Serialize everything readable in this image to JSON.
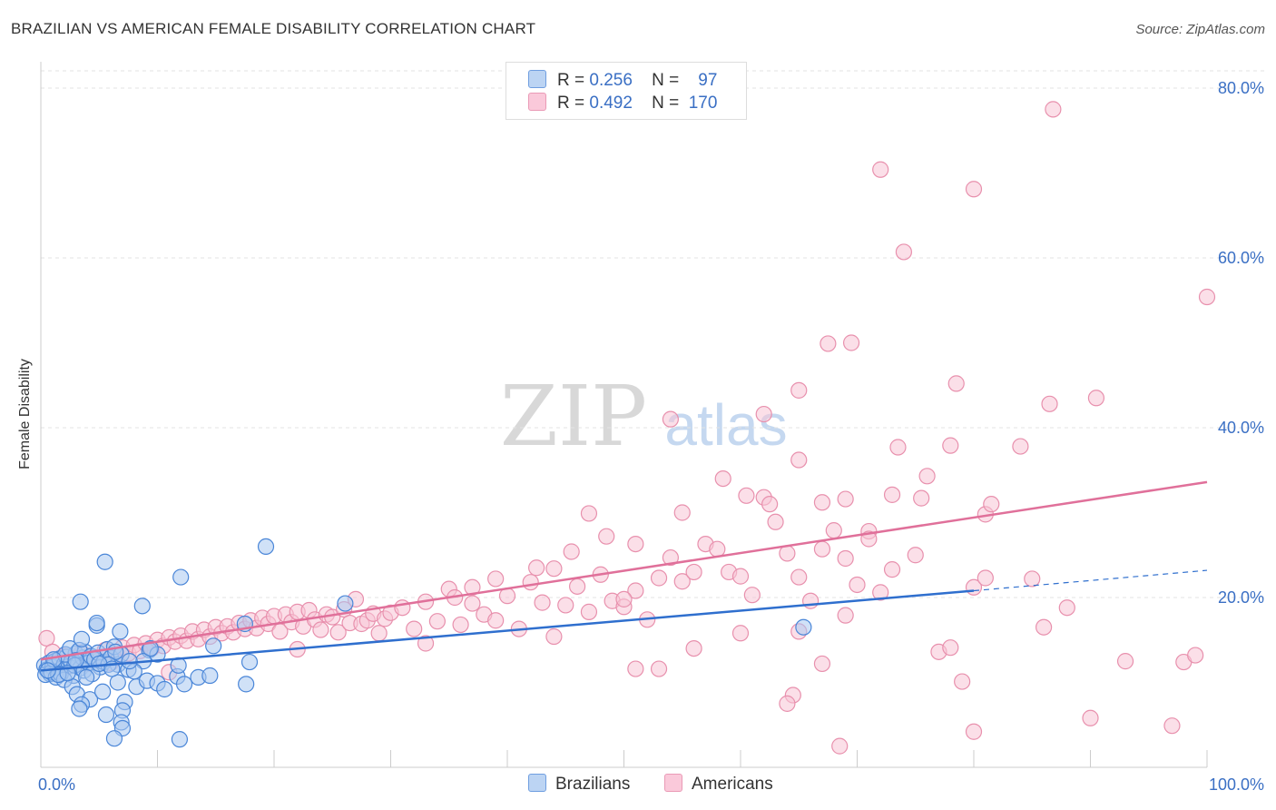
{
  "title": "BRAZILIAN VS AMERICAN FEMALE DISABILITY CORRELATION CHART",
  "source": "Source: ZipAtlas.com",
  "watermark": {
    "zip": "ZIP",
    "atlas": "atlas"
  },
  "legend": {
    "rows": [
      {
        "r_label": "R =",
        "r_value": "0.256",
        "n_label": "N =",
        "n_value": "97"
      },
      {
        "r_label": "R =",
        "r_value": "0.492",
        "n_label": "N =",
        "n_value": "170"
      }
    ]
  },
  "chart_data": {
    "type": "scatter",
    "title": "BRAZILIAN VS AMERICAN FEMALE DISABILITY CORRELATION CHART",
    "xlabel": "",
    "ylabel": "Female Disability",
    "xlim": [
      0,
      100
    ],
    "ylim": [
      0,
      80
    ],
    "x_tick_labels": [
      "0.0%",
      "100.0%"
    ],
    "y_tick_labels": [
      "20.0%",
      "40.0%",
      "60.0%",
      "80.0%"
    ],
    "y_ticks": [
      20,
      40,
      60,
      80
    ],
    "x_ticks": [
      0,
      10,
      20,
      30,
      40,
      50,
      60,
      70,
      80,
      90,
      100
    ],
    "grid": true,
    "legend_position": "top-center",
    "colors": {
      "brazilians_fill": "#aac8f0",
      "brazilians_stroke": "#4a86d8",
      "brazilians_line": "#2f6fce",
      "americans_fill": "#f8c4d6",
      "americans_stroke": "#e890ad",
      "americans_line": "#e0709a",
      "axis_label_blue": "#3a6fc4"
    },
    "series": [
      {
        "name": "Brazilians",
        "r": 0.256,
        "n": 97,
        "trend": {
          "x0": 0,
          "y0": 11.4,
          "x1": 80,
          "y1": 20.8,
          "dash_to_x": 100,
          "dash_to_y": 23.2
        },
        "points": [
          [
            0.3,
            12.0
          ],
          [
            0.5,
            11.5
          ],
          [
            0.7,
            12.3
          ],
          [
            0.8,
            11.0
          ],
          [
            1.0,
            11.8
          ],
          [
            1.2,
            12.5
          ],
          [
            1.4,
            11.3
          ],
          [
            1.6,
            12.8
          ],
          [
            1.8,
            11.6
          ],
          [
            2.0,
            12.1
          ],
          [
            2.2,
            13.0
          ],
          [
            2.4,
            11.9
          ],
          [
            2.6,
            12.4
          ],
          [
            2.8,
            10.8
          ],
          [
            3.0,
            13.4
          ],
          [
            3.2,
            12.2
          ],
          [
            3.4,
            11.7
          ],
          [
            3.6,
            12.9
          ],
          [
            3.8,
            13.6
          ],
          [
            4.0,
            12.6
          ],
          [
            0.4,
            10.9
          ],
          [
            0.9,
            11.2
          ],
          [
            1.3,
            10.6
          ],
          [
            1.7,
            11.0
          ],
          [
            2.1,
            13.3
          ],
          [
            2.5,
            14.0
          ],
          [
            2.9,
            12.0
          ],
          [
            3.3,
            13.8
          ],
          [
            3.7,
            11.4
          ],
          [
            4.1,
            12.3
          ],
          [
            4.3,
            13.1
          ],
          [
            4.6,
            12.7
          ],
          [
            4.9,
            13.5
          ],
          [
            5.1,
            11.8
          ],
          [
            5.4,
            12.4
          ],
          [
            5.7,
            13.9
          ],
          [
            6.0,
            12.9
          ],
          [
            6.3,
            14.2
          ],
          [
            6.6,
            12.1
          ],
          [
            6.9,
            13.3
          ],
          [
            3.4,
            19.5
          ],
          [
            5.5,
            24.2
          ],
          [
            8.7,
            19.0
          ],
          [
            12.0,
            22.4
          ],
          [
            19.3,
            26.0
          ],
          [
            26.1,
            19.3
          ],
          [
            6.8,
            16.0
          ],
          [
            4.8,
            16.7
          ],
          [
            4.8,
            17.0
          ],
          [
            3.5,
            15.1
          ],
          [
            7.5,
            11.5
          ],
          [
            8.2,
            9.5
          ],
          [
            9.1,
            10.2
          ],
          [
            10.0,
            9.9
          ],
          [
            10.6,
            9.2
          ],
          [
            11.7,
            10.7
          ],
          [
            12.3,
            9.8
          ],
          [
            13.5,
            10.6
          ],
          [
            14.5,
            10.8
          ],
          [
            17.6,
            9.8
          ],
          [
            2.0,
            10.3
          ],
          [
            2.7,
            9.5
          ],
          [
            3.1,
            8.6
          ],
          [
            4.2,
            8.0
          ],
          [
            5.3,
            8.9
          ],
          [
            6.6,
            10.0
          ],
          [
            7.2,
            7.7
          ],
          [
            7.0,
            6.7
          ],
          [
            5.6,
            6.2
          ],
          [
            6.9,
            5.3
          ],
          [
            7.0,
            4.6
          ],
          [
            6.3,
            3.4
          ],
          [
            11.9,
            3.3
          ],
          [
            3.5,
            7.4
          ],
          [
            3.3,
            6.9
          ],
          [
            17.9,
            12.4
          ],
          [
            14.8,
            14.3
          ],
          [
            11.8,
            12.0
          ],
          [
            9.3,
            13.8
          ],
          [
            8.8,
            12.5
          ],
          [
            10.0,
            13.3
          ],
          [
            9.4,
            14.0
          ],
          [
            8.0,
            11.3
          ],
          [
            7.6,
            12.5
          ],
          [
            6.4,
            13.6
          ],
          [
            5.8,
            12.1
          ],
          [
            4.4,
            11.0
          ],
          [
            3.9,
            10.6
          ],
          [
            1.5,
            10.9
          ],
          [
            1.1,
            12.7
          ],
          [
            0.6,
            11.4
          ],
          [
            2.3,
            11.1
          ],
          [
            3.0,
            12.6
          ],
          [
            5.0,
            12.2
          ],
          [
            6.1,
            11.6
          ],
          [
            17.5,
            16.9
          ],
          [
            65.4,
            16.5
          ]
        ]
      },
      {
        "name": "Americans",
        "r": 0.492,
        "n": 170,
        "trend": {
          "x0": 0,
          "y0": 12.7,
          "x1": 100,
          "y1": 33.6
        },
        "points": [
          [
            0.5,
            15.2
          ],
          [
            1.0,
            13.6
          ],
          [
            1.5,
            12.4
          ],
          [
            2.0,
            13.1
          ],
          [
            2.5,
            12.0
          ],
          [
            3.0,
            12.9
          ],
          [
            3.5,
            13.5
          ],
          [
            4.0,
            12.2
          ],
          [
            4.5,
            13.0
          ],
          [
            5.0,
            12.6
          ],
          [
            5.5,
            13.8
          ],
          [
            6.0,
            12.3
          ],
          [
            6.5,
            13.2
          ],
          [
            7.0,
            14.1
          ],
          [
            7.5,
            13.4
          ],
          [
            8.0,
            14.4
          ],
          [
            8.5,
            13.7
          ],
          [
            9.0,
            14.6
          ],
          [
            9.5,
            14.0
          ],
          [
            10.0,
            15.0
          ],
          [
            10.5,
            14.3
          ],
          [
            11.0,
            15.3
          ],
          [
            11.5,
            14.8
          ],
          [
            12.0,
            15.5
          ],
          [
            12.5,
            14.9
          ],
          [
            13.0,
            16.0
          ],
          [
            13.5,
            15.1
          ],
          [
            14.0,
            16.2
          ],
          [
            14.5,
            15.4
          ],
          [
            15.0,
            16.5
          ],
          [
            15.5,
            15.8
          ],
          [
            16.0,
            16.6
          ],
          [
            16.5,
            15.9
          ],
          [
            17.0,
            17.0
          ],
          [
            17.5,
            16.3
          ],
          [
            18.0,
            17.3
          ],
          [
            18.5,
            16.4
          ],
          [
            19.0,
            17.6
          ],
          [
            19.5,
            16.9
          ],
          [
            20.0,
            17.8
          ],
          [
            20.5,
            16.0
          ],
          [
            21.0,
            18.0
          ],
          [
            21.5,
            17.1
          ],
          [
            22.0,
            18.3
          ],
          [
            22.5,
            16.6
          ],
          [
            23.0,
            18.5
          ],
          [
            23.5,
            17.4
          ],
          [
            24.0,
            16.2
          ],
          [
            24.5,
            18.0
          ],
          [
            25.0,
            17.7
          ],
          [
            25.5,
            15.9
          ],
          [
            26.0,
            18.6
          ],
          [
            26.5,
            17.0
          ],
          [
            27.0,
            19.8
          ],
          [
            27.5,
            16.9
          ],
          [
            28.0,
            17.3
          ],
          [
            28.5,
            18.1
          ],
          [
            29.0,
            15.8
          ],
          [
            29.5,
            17.5
          ],
          [
            30.0,
            18.2
          ],
          [
            31.0,
            18.8
          ],
          [
            32.0,
            16.3
          ],
          [
            33.0,
            19.5
          ],
          [
            34.0,
            17.2
          ],
          [
            35.0,
            21.0
          ],
          [
            36.0,
            16.8
          ],
          [
            37.0,
            19.3
          ],
          [
            38.0,
            18.0
          ],
          [
            39.0,
            17.3
          ],
          [
            40.0,
            20.2
          ],
          [
            41.0,
            16.3
          ],
          [
            42.0,
            21.8
          ],
          [
            43.0,
            19.4
          ],
          [
            44.0,
            23.4
          ],
          [
            45.0,
            19.1
          ],
          [
            46.0,
            21.3
          ],
          [
            47.0,
            18.3
          ],
          [
            48.0,
            22.7
          ],
          [
            49.0,
            19.6
          ],
          [
            50.0,
            18.9
          ],
          [
            51.0,
            20.8
          ],
          [
            52.0,
            17.4
          ],
          [
            53.0,
            22.3
          ],
          [
            54.0,
            24.7
          ],
          [
            55.0,
            21.9
          ],
          [
            56.0,
            23.0
          ],
          [
            57.0,
            26.3
          ],
          [
            58.0,
            25.7
          ],
          [
            59.0,
            23.0
          ],
          [
            60.0,
            22.5
          ],
          [
            61.0,
            20.3
          ],
          [
            62.0,
            31.8
          ],
          [
            63.0,
            28.9
          ],
          [
            64.0,
            25.2
          ],
          [
            65.0,
            22.4
          ],
          [
            66.0,
            19.6
          ],
          [
            67.0,
            25.7
          ],
          [
            68.0,
            27.9
          ],
          [
            69.0,
            24.6
          ],
          [
            70.0,
            21.5
          ],
          [
            11.0,
            11.2
          ],
          [
            22.0,
            13.9
          ],
          [
            33.0,
            14.6
          ],
          [
            44.0,
            15.4
          ],
          [
            51.0,
            11.6
          ],
          [
            53.0,
            11.6
          ],
          [
            56.0,
            14.0
          ],
          [
            60.0,
            15.8
          ],
          [
            64.5,
            8.5
          ],
          [
            65.0,
            16.0
          ],
          [
            67.0,
            12.2
          ],
          [
            69.0,
            17.9
          ],
          [
            71.0,
            27.8
          ],
          [
            72.0,
            20.6
          ],
          [
            73.0,
            23.3
          ],
          [
            75.0,
            25.0
          ],
          [
            77.0,
            13.6
          ],
          [
            78.0,
            14.1
          ],
          [
            79.0,
            10.1
          ],
          [
            80.0,
            21.2
          ],
          [
            81.0,
            22.3
          ],
          [
            85.0,
            22.2
          ],
          [
            86.0,
            16.5
          ],
          [
            88.0,
            18.8
          ],
          [
            90.0,
            5.8
          ],
          [
            93.0,
            12.5
          ],
          [
            97.0,
            4.9
          ],
          [
            98.0,
            12.4
          ],
          [
            99.0,
            13.2
          ],
          [
            80.0,
            4.2
          ],
          [
            68.5,
            2.5
          ],
          [
            64.0,
            7.5
          ],
          [
            47.0,
            29.9
          ],
          [
            51.0,
            26.3
          ],
          [
            55.0,
            30.0
          ],
          [
            58.5,
            34.0
          ],
          [
            60.5,
            32.0
          ],
          [
            62.5,
            31.0
          ],
          [
            65.0,
            36.2
          ],
          [
            67.0,
            31.2
          ],
          [
            69.0,
            31.6
          ],
          [
            71.0,
            26.9
          ],
          [
            73.0,
            32.1
          ],
          [
            73.5,
            37.7
          ],
          [
            75.5,
            31.7
          ],
          [
            76.0,
            34.3
          ],
          [
            78.0,
            37.9
          ],
          [
            81.0,
            29.8
          ],
          [
            81.5,
            31.0
          ],
          [
            84.0,
            37.8
          ],
          [
            86.5,
            42.8
          ],
          [
            90.5,
            43.5
          ],
          [
            62.0,
            41.6
          ],
          [
            65.0,
            44.4
          ],
          [
            67.5,
            49.9
          ],
          [
            69.5,
            50.0
          ],
          [
            72.0,
            70.4
          ],
          [
            74.0,
            60.7
          ],
          [
            78.5,
            45.2
          ],
          [
            80.0,
            68.1
          ],
          [
            86.8,
            77.5
          ],
          [
            100.0,
            55.4
          ],
          [
            54.0,
            41.0
          ],
          [
            48.5,
            27.2
          ],
          [
            45.5,
            25.4
          ],
          [
            50.0,
            19.8
          ],
          [
            42.5,
            23.5
          ],
          [
            39.0,
            22.2
          ],
          [
            37.0,
            21.2
          ],
          [
            35.5,
            20.0
          ]
        ]
      }
    ]
  }
}
